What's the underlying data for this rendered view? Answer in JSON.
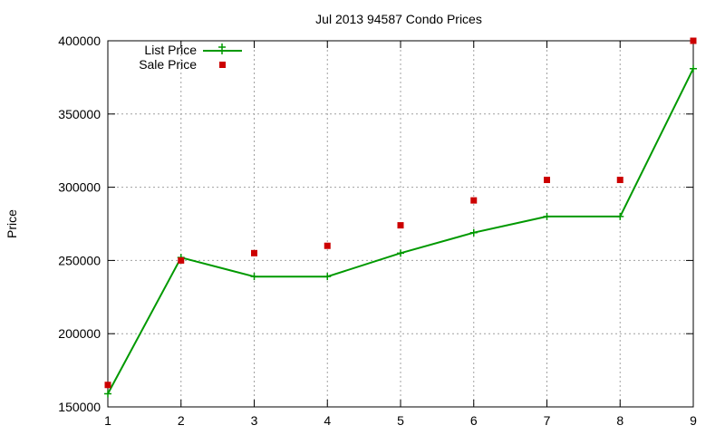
{
  "chart_data": {
    "type": "line",
    "title": "Jul 2013 94587 Condo Prices",
    "xlabel": "",
    "ylabel": "Price",
    "x": [
      1,
      2,
      3,
      4,
      5,
      6,
      7,
      8,
      9
    ],
    "xlim": [
      1,
      9
    ],
    "ylim": [
      150000,
      400000
    ],
    "xticks": [
      "1",
      "2",
      "3",
      "4",
      "5",
      "6",
      "7",
      "8",
      "9"
    ],
    "yticks": [
      "150000",
      "200000",
      "250000",
      "300000",
      "350000",
      "400000"
    ],
    "grid": true,
    "legend_position": "top-left",
    "series": [
      {
        "name": "List Price",
        "style": "line-with-plus-markers",
        "color": "#009900",
        "values": [
          159000,
          252000,
          239000,
          239000,
          255000,
          269000,
          280000,
          280000,
          381000
        ]
      },
      {
        "name": "Sale Price",
        "style": "square-markers",
        "color": "#cc0000",
        "values": [
          165000,
          250000,
          255000,
          260000,
          274000,
          291000,
          305000,
          305000,
          400000
        ]
      }
    ]
  }
}
